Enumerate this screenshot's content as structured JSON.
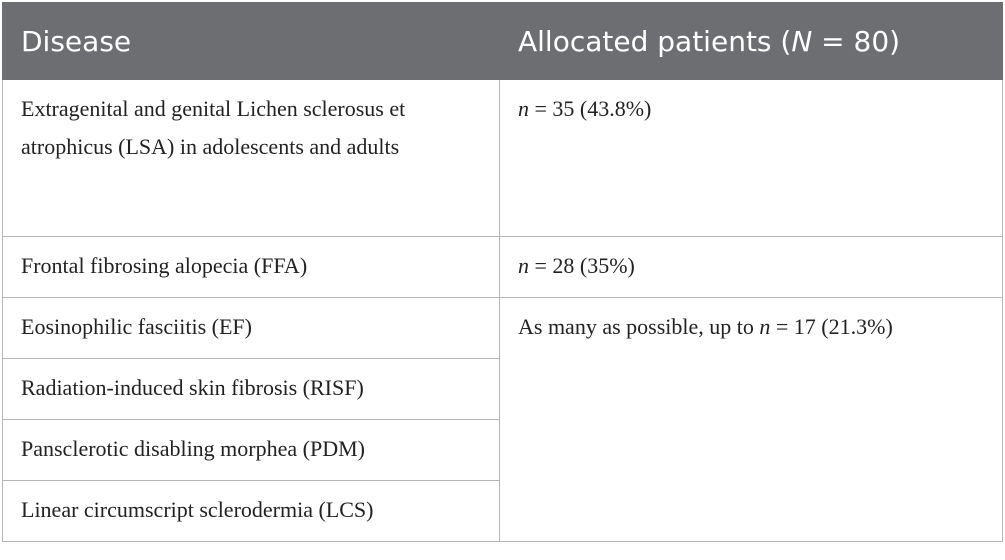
{
  "table": {
    "header": [
      [
        {
          "text": "Disease"
        }
      ],
      [
        {
          "text": "Allocated patients ("
        },
        {
          "text": "N",
          "italic": true
        },
        {
          "text": " = 80)"
        }
      ]
    ],
    "rows": [
      [
        [
          {
            "text": "Extragenital and genital Lichen sclerosus et atrophicus (LSA) in adolescents and adults"
          }
        ],
        [
          {
            "text": "n",
            "italic": true
          },
          {
            "text": " = 35 (43.8%)"
          }
        ]
      ],
      [
        [
          {
            "text": "Frontal fibrosing alopecia (FFA)"
          }
        ],
        [
          {
            "text": "n",
            "italic": true
          },
          {
            "text": " = 28 (35%)"
          }
        ]
      ],
      [
        [
          {
            "text": "Eosinophilic fasciitis (EF)"
          }
        ],
        [
          {
            "text": "As many as possible, up to "
          },
          {
            "text": "n",
            "italic": true
          },
          {
            "text": " = 17 (21.3%)"
          }
        ]
      ],
      [
        [
          {
            "text": "Radiation-induced skin fibrosis (RISF)"
          }
        ]
      ],
      [
        [
          {
            "text": "Pansclerotic disabling morphea (PDM)"
          }
        ]
      ],
      [
        [
          {
            "text": "Linear circumscript sclerodermia (LCS)"
          }
        ]
      ]
    ]
  }
}
